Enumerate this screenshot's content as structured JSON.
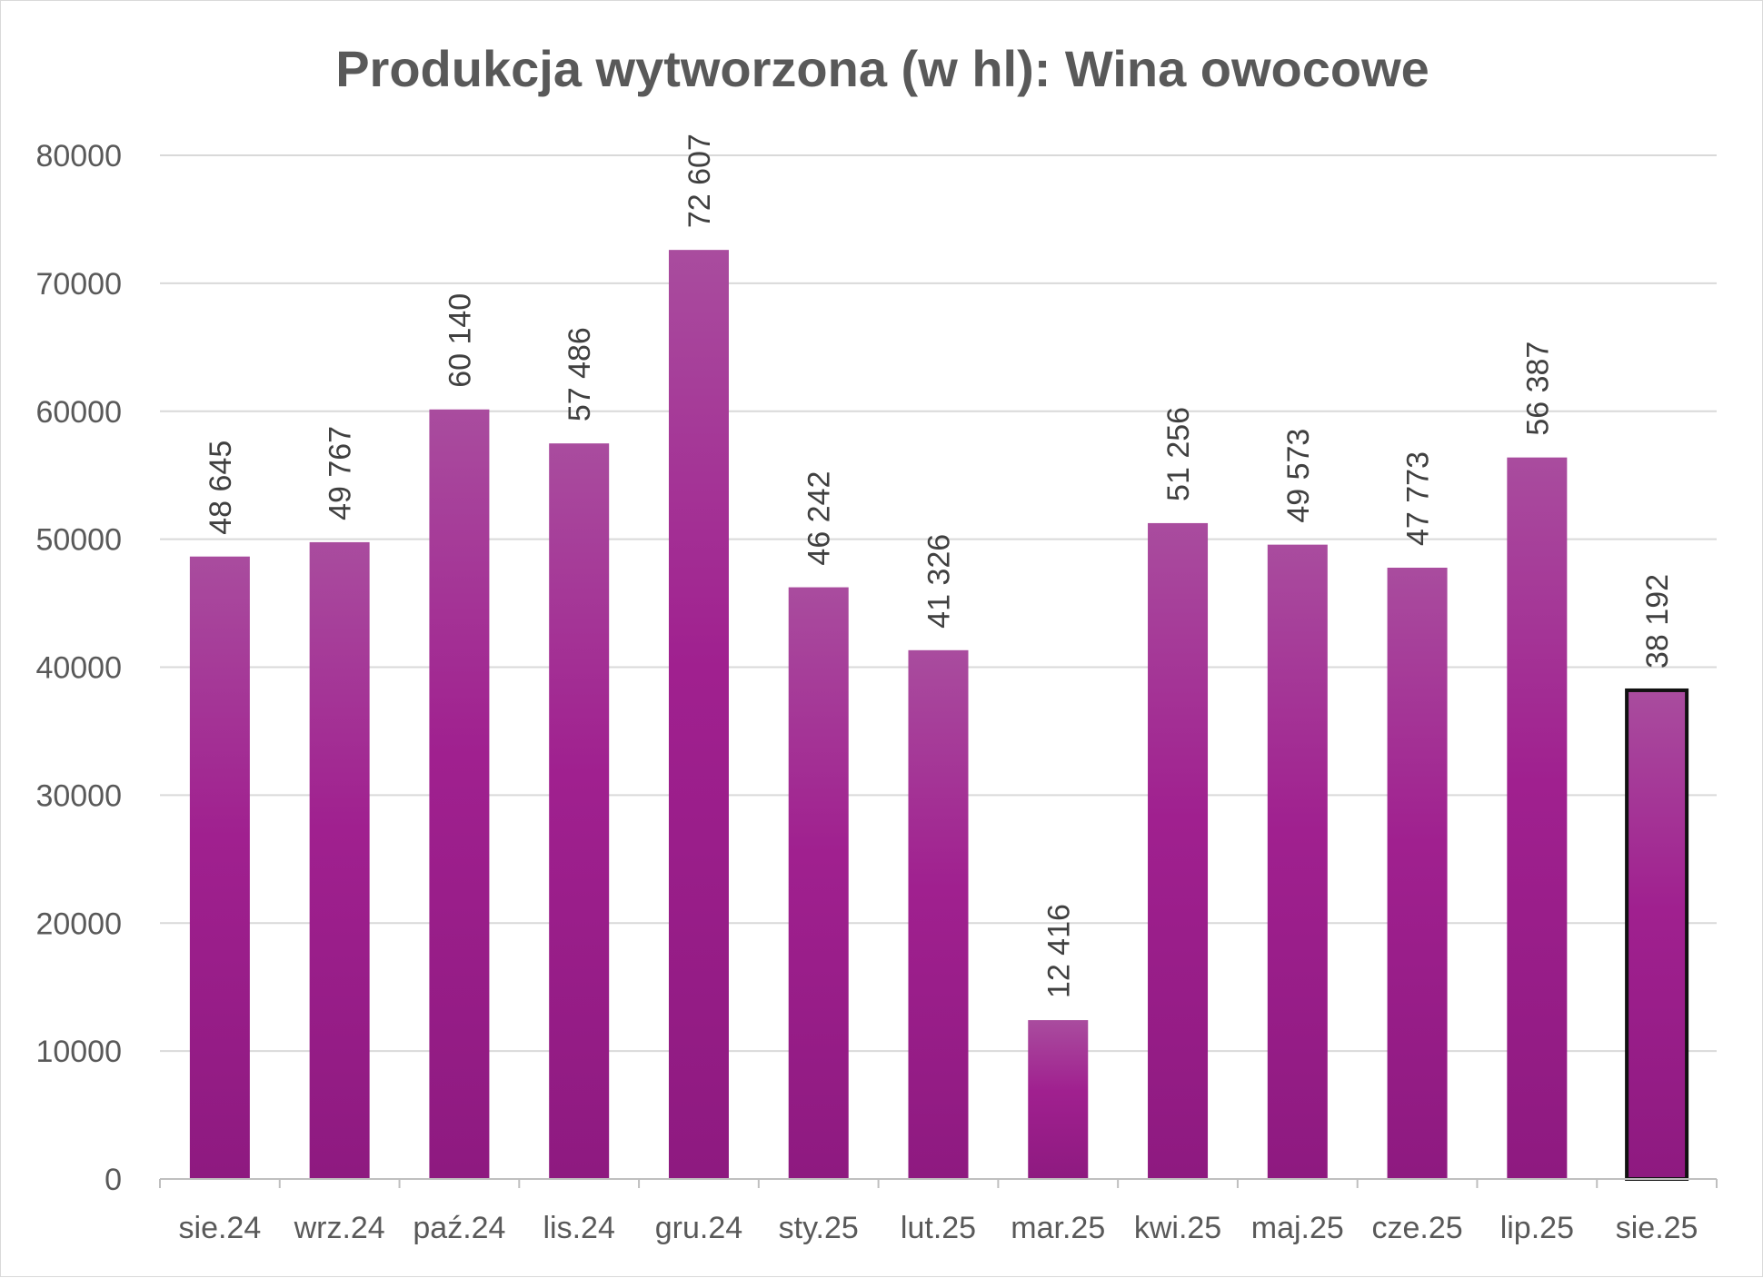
{
  "chart_data": {
    "type": "bar",
    "title": "Produkcja wytworzona (w hl): Wina owocowe",
    "xlabel": "",
    "ylabel": "",
    "ylim": [
      0,
      80000
    ],
    "yticks": [
      "0",
      "10000",
      "20000",
      "30000",
      "40000",
      "50000",
      "60000",
      "70000",
      "80000"
    ],
    "grid": true,
    "legend": "none",
    "categories": [
      "sie.24",
      "wrz.24",
      "paź.24",
      "lis.24",
      "gru.24",
      "sty.25",
      "lut.25",
      "mar.25",
      "kwi.25",
      "maj.25",
      "cze.25",
      "lip.25",
      "sie.25"
    ],
    "values": [
      48645,
      49767,
      60140,
      57486,
      72607,
      46242,
      41326,
      12416,
      51256,
      49573,
      47773,
      56387,
      38192
    ],
    "data_labels": [
      "48 645",
      "49 767",
      "60 140",
      "57 486",
      "72 607",
      "46 242",
      "41 326",
      "12 416",
      "51 256",
      "49 573",
      "47 773",
      "56 387",
      "38 192"
    ],
    "highlighted_category": "sie.25",
    "colors": {
      "bar_top": "#a94c9e",
      "bar_mid": "#a0208f",
      "bar_bottom": "#8e1a80",
      "highlight_border": "#111111",
      "grid": "#d9d9d9",
      "axis": "#bfbfbf",
      "text": "#595959"
    }
  }
}
